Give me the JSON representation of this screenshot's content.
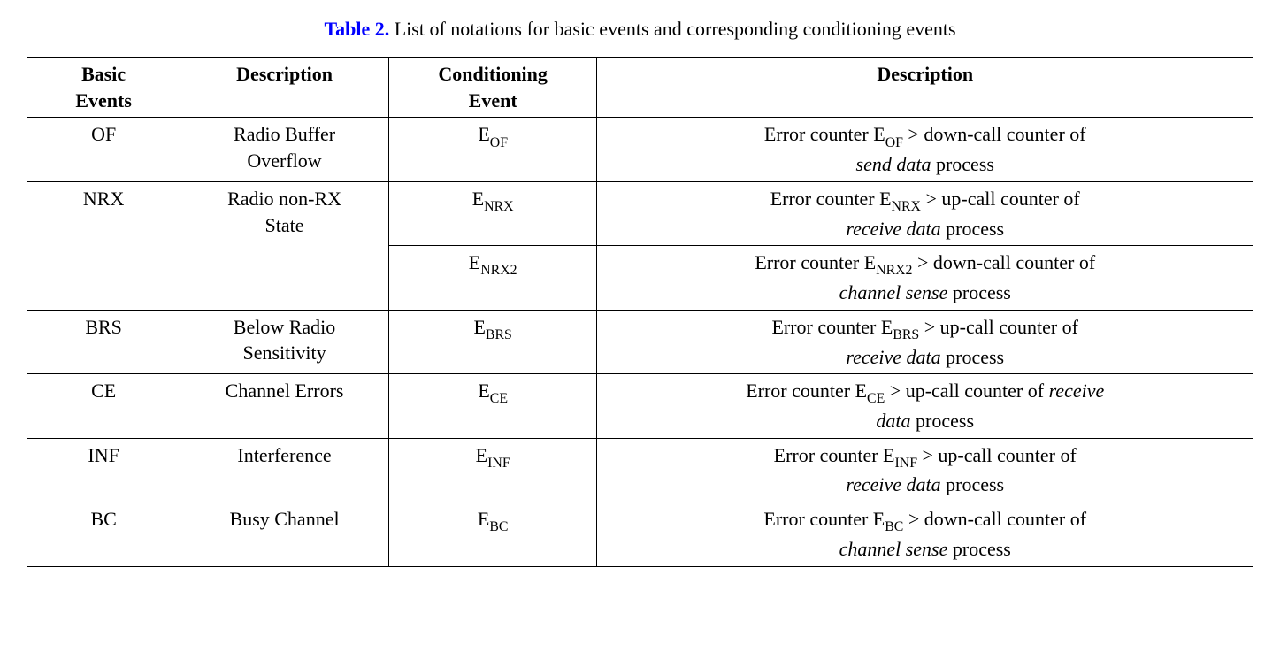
{
  "caption": {
    "label": "Table 2.",
    "text": " List of notations for basic events and corresponding conditioning events"
  },
  "headers": {
    "col1_line1": "Basic",
    "col1_line2": "Events",
    "col2": "Description",
    "col3_line1": "Conditioning",
    "col3_line2": "Event",
    "col4": "Description"
  },
  "rows": {
    "of": {
      "event": "OF",
      "desc_line1": "Radio Buffer",
      "desc_line2": "Overflow",
      "cond_base": "E",
      "cond_sub": "OF",
      "d4_pre": "Error counter E",
      "d4_sub": "OF",
      "d4_mid": "  > down-call counter of",
      "d4_italic": "send data",
      "d4_post": " process"
    },
    "nrx": {
      "event": "NRX",
      "desc_line1": "Radio non-RX",
      "desc_line2": "State",
      "cond1_base": "E",
      "cond1_sub": "NRX",
      "d4a_pre": "Error counter E",
      "d4a_sub": "NRX",
      "d4a_mid": "  > up-call counter of",
      "d4a_italic": "receive data",
      "d4a_post": " process",
      "cond2_base": "E",
      "cond2_sub": "NRX2",
      "d4b_pre": "Error counter E",
      "d4b_sub": "NRX2",
      "d4b_mid": "  > down-call counter of",
      "d4b_italic": "channel sense",
      "d4b_post": " process"
    },
    "brs": {
      "event": "BRS",
      "desc_line1": "Below Radio",
      "desc_line2": "Sensitivity",
      "cond_base": "E",
      "cond_sub": "BRS",
      "d4_pre": "Error counter E",
      "d4_sub": "BRS",
      "d4_mid": "  > up-call counter of",
      "d4_italic": "receive data",
      "d4_post": " process"
    },
    "ce": {
      "event": "CE",
      "desc": "Channel Errors",
      "cond_base": "E",
      "cond_sub": "CE",
      "d4_pre": "Error counter E",
      "d4_sub": "CE",
      "d4_mid": "  > up-call counter of ",
      "d4_italic1": "receive",
      "d4_italic2": "data",
      "d4_post": " process"
    },
    "inf": {
      "event": "INF",
      "desc": "Interference",
      "cond_base": "E",
      "cond_sub": "INF",
      "d4_pre": "Error counter E",
      "d4_sub": "INF",
      "d4_mid": "  > up-call counter of",
      "d4_italic": "receive data ",
      "d4_post": " process"
    },
    "bc": {
      "event": "BC",
      "desc": "Busy Channel",
      "cond_base": "E",
      "cond_sub": "BC",
      "d4_pre": "Error counter E",
      "d4_sub": "BC",
      "d4_mid": "  > down-call counter of",
      "d4_italic": "channel sense",
      "d4_post": " process"
    }
  },
  "styling": {
    "caption_label_color": "#0000ff",
    "text_color": "#000000",
    "border_color": "#000000",
    "background_color": "#ffffff",
    "font_family": "Times New Roman",
    "base_font_size": 22
  }
}
